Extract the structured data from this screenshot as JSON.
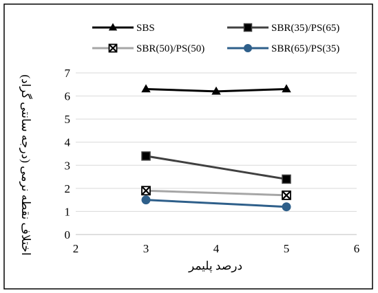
{
  "chart_data": {
    "type": "line",
    "title": "",
    "xlabel": "درصد پلیمر",
    "ylabel": "اختلاف نقطه نرمی (درجه سانتی گراد)",
    "xlim": [
      2,
      6
    ],
    "ylim": [
      0,
      7
    ],
    "x_ticks": [
      "2",
      "3",
      "4",
      "5",
      "6"
    ],
    "y_ticks": [
      "0",
      "1",
      "2",
      "3",
      "4",
      "5",
      "6",
      "7"
    ],
    "grid": "horizontal",
    "legend_position": "top",
    "series": [
      {
        "name": "SBS",
        "color": "#000000",
        "marker": "triangle",
        "x": [
          3,
          4,
          5
        ],
        "y": [
          6.3,
          6.2,
          6.3
        ]
      },
      {
        "name": "SBR(35)/PS(65)",
        "color": "#404040",
        "marker": "square",
        "x": [
          3,
          5
        ],
        "y": [
          3.4,
          2.4
        ]
      },
      {
        "name": "SBR(50)/PS(50)",
        "color": "#a6a6a6",
        "marker": "square-x",
        "x": [
          3,
          5
        ],
        "y": [
          1.9,
          1.7
        ]
      },
      {
        "name": "SBR(65)/PS(35)",
        "color": "#2e5f8a",
        "marker": "circle",
        "x": [
          3,
          5
        ],
        "y": [
          1.5,
          1.2
        ]
      }
    ]
  }
}
